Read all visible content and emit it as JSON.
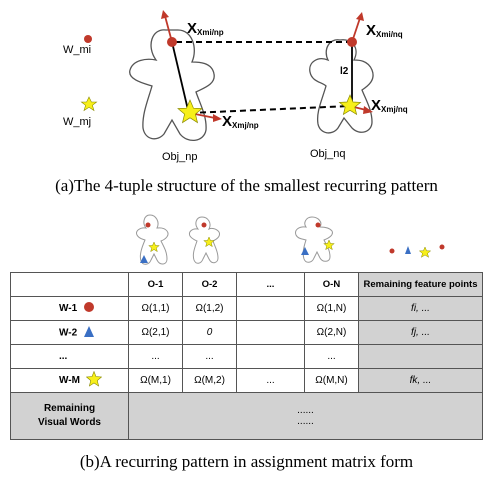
{
  "part_a": {
    "legend": {
      "circle_label": "W_mi",
      "star_label": "W_mj"
    },
    "points": {
      "top_left": "Xmi/np",
      "top_right": "Xmi/nq",
      "star_left": "Xmj/np",
      "star_right": "Xmj/nq"
    },
    "distance_label": "l2",
    "objects": {
      "left": "Obj_np",
      "right": "Obj_nq"
    },
    "caption": "(a)The 4-tuple structure of the smallest recurring pattern"
  },
  "part_b": {
    "matrix": {
      "header": [
        "O-1",
        "O-2",
        "...",
        "O-N",
        "Remaining feature points"
      ],
      "rows": [
        {
          "word": "W-1",
          "symbol": "circle",
          "cells": [
            "Ω(1,1)",
            "Ω(1,2)",
            "",
            "Ω(1,N)"
          ],
          "remaining": "fi, ..."
        },
        {
          "word": "W-2",
          "symbol": "triangle",
          "cells": [
            "Ω(2,1)",
            "0",
            "",
            "Ω(2,N)"
          ],
          "remaining": "fj, ..."
        },
        {
          "word": "...",
          "symbol": "",
          "cells": [
            "...",
            "...",
            "",
            "..."
          ],
          "remaining": ""
        },
        {
          "word": "W-M",
          "symbol": "star",
          "cells": [
            "Ω(M,1)",
            "Ω(M,2)",
            "...",
            "Ω(M,N)"
          ],
          "remaining": "fk, ..."
        }
      ],
      "last_row": {
        "label_line1": "Remaining",
        "label_line2": "Visual Words",
        "dots1": "......",
        "dots2": "......"
      }
    },
    "caption": "(b)A recurring pattern in assignment matrix form"
  },
  "colors": {
    "point_red": "#c0392b",
    "star_yellow": "#f7ef1a",
    "triangle_blue": "#3a6fc4",
    "arrow_red": "#c0392b",
    "gray_cell": "#d2d2d2"
  }
}
